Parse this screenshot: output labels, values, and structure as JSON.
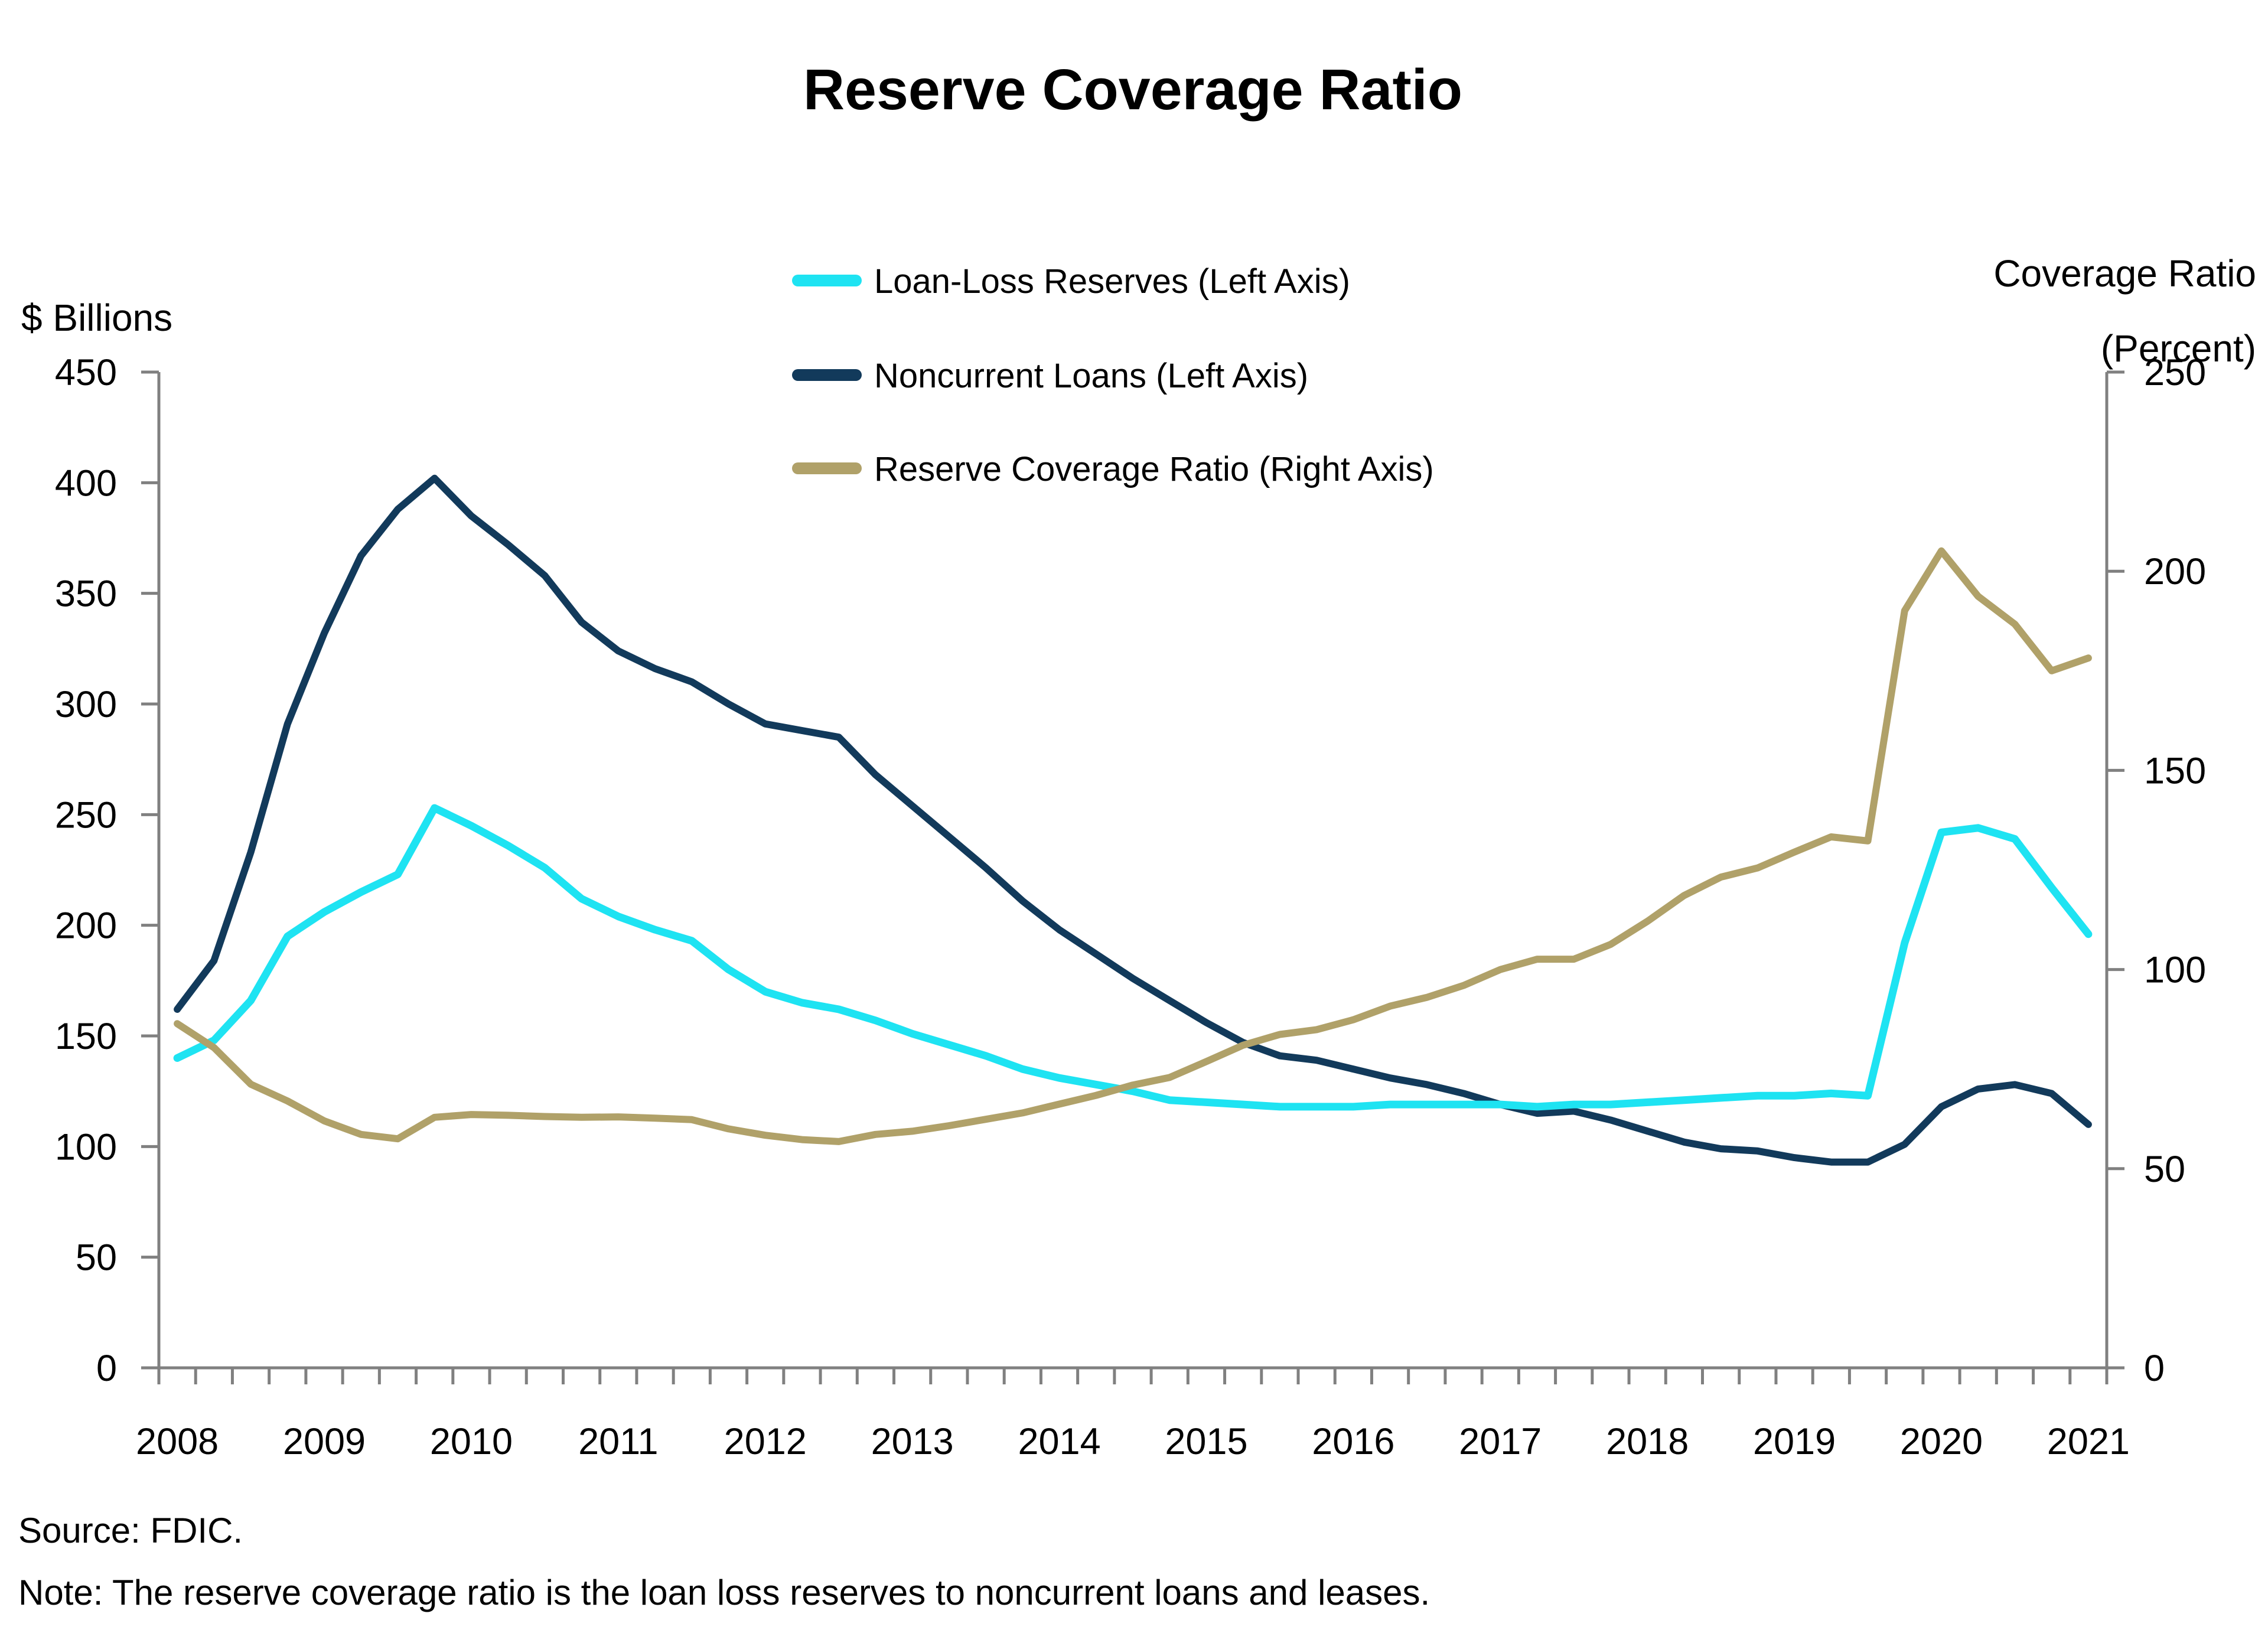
{
  "title": "Reserve Coverage Ratio",
  "left_axis": {
    "title": "$ Billions",
    "ticks": [
      0,
      50,
      100,
      150,
      200,
      250,
      300,
      350,
      400,
      450
    ],
    "min": 0,
    "max": 450
  },
  "right_axis": {
    "title_line1": "Coverage Ratio",
    "title_line2": "(Percent)",
    "ticks": [
      0,
      50,
      100,
      150,
      200,
      250
    ],
    "min": 0,
    "max": 250
  },
  "x_axis": {
    "year_labels": [
      "2008",
      "2009",
      "2010",
      "2011",
      "2012",
      "2013",
      "2014",
      "2015",
      "2016",
      "2017",
      "2018",
      "2019",
      "2020",
      "2021"
    ]
  },
  "legend": {
    "items": [
      {
        "label": "Loan-Loss Reserves (Left Axis)",
        "color": "#1EE3F2"
      },
      {
        "label": "Noncurrent Loans (Left Axis)",
        "color": "#123A5B"
      },
      {
        "label": "Reserve Coverage Ratio (Right Axis)",
        "color": "#B0A169"
      }
    ]
  },
  "source": "Source: FDIC.",
  "note": "Note: The reserve coverage ratio is the loan loss reserves to noncurrent loans and leases.",
  "colors": {
    "loan_loss_reserves": "#1EE3F2",
    "noncurrent_loans": "#123A5B",
    "reserve_coverage_ratio": "#B0A169",
    "axis": "#808080",
    "text": "#000000",
    "background": "#ffffff"
  },
  "chart_data": {
    "type": "line",
    "x": [
      "2008Q2",
      "2008Q3",
      "2008Q4",
      "2009Q1",
      "2009Q2",
      "2009Q3",
      "2009Q4",
      "2010Q1",
      "2010Q2",
      "2010Q3",
      "2010Q4",
      "2011Q1",
      "2011Q2",
      "2011Q3",
      "2011Q4",
      "2012Q1",
      "2012Q2",
      "2012Q3",
      "2012Q4",
      "2013Q1",
      "2013Q2",
      "2013Q3",
      "2013Q4",
      "2014Q1",
      "2014Q2",
      "2014Q3",
      "2014Q4",
      "2015Q1",
      "2015Q2",
      "2015Q3",
      "2015Q4",
      "2016Q1",
      "2016Q2",
      "2016Q3",
      "2016Q4",
      "2017Q1",
      "2017Q2",
      "2017Q3",
      "2017Q4",
      "2018Q1",
      "2018Q2",
      "2018Q3",
      "2018Q4",
      "2019Q1",
      "2019Q2",
      "2019Q3",
      "2019Q4",
      "2020Q1",
      "2020Q2",
      "2020Q3",
      "2020Q4",
      "2021Q1",
      "2021Q2"
    ],
    "series": [
      {
        "name": "Loan-Loss Reserves (Left Axis)",
        "axis": "left",
        "unit": "$ Billions",
        "color": "#1EE3F2",
        "values": [
          140,
          148,
          166,
          195,
          206,
          215,
          223,
          253,
          245,
          236,
          226,
          212,
          204,
          198,
          193,
          180,
          170,
          165,
          162,
          157,
          151,
          146,
          141,
          135,
          131,
          128,
          125,
          121,
          120,
          119,
          118,
          118,
          118,
          119,
          119,
          119,
          119,
          118,
          119,
          119,
          120,
          121,
          122,
          123,
          123,
          124,
          123,
          192,
          242,
          244,
          239,
          217,
          196
        ]
      },
      {
        "name": "Noncurrent Loans (Left Axis)",
        "axis": "left",
        "unit": "$ Billions",
        "color": "#123A5B",
        "values": [
          162,
          184,
          233,
          291,
          332,
          367,
          388,
          402,
          385,
          372,
          358,
          337,
          324,
          316,
          310,
          300,
          291,
          288,
          285,
          268,
          254,
          240,
          226,
          211,
          198,
          187,
          176,
          166,
          156,
          147,
          141,
          139,
          135,
          131,
          128,
          124,
          119,
          115,
          116,
          112,
          107,
          102,
          99,
          98,
          95,
          93,
          93,
          101,
          118,
          126,
          128,
          124,
          110
        ]
      },
      {
        "name": "Reserve Coverage Ratio (Right Axis)",
        "axis": "right",
        "unit": "Percent",
        "color": "#B0A169",
        "values": [
          86.4,
          80.4,
          71.2,
          67.0,
          62.0,
          58.6,
          57.5,
          62.9,
          63.6,
          63.4,
          63.1,
          62.9,
          63.0,
          62.7,
          62.3,
          60.0,
          58.4,
          57.3,
          56.8,
          58.6,
          59.4,
          60.8,
          62.4,
          64.0,
          66.2,
          68.4,
          71.0,
          72.9,
          76.9,
          81.0,
          83.7,
          84.9,
          87.4,
          90.8,
          93.0,
          96.0,
          100.0,
          102.6,
          102.6,
          106.3,
          112.1,
          118.6,
          123.2,
          125.5,
          129.5,
          133.3,
          132.3,
          190.1,
          205.1,
          193.7,
          186.7,
          175.0,
          178.2
        ]
      }
    ],
    "left_ylim": [
      0,
      450
    ],
    "right_ylim": [
      0,
      250
    ],
    "grid": false,
    "legend_position": "top-center"
  }
}
